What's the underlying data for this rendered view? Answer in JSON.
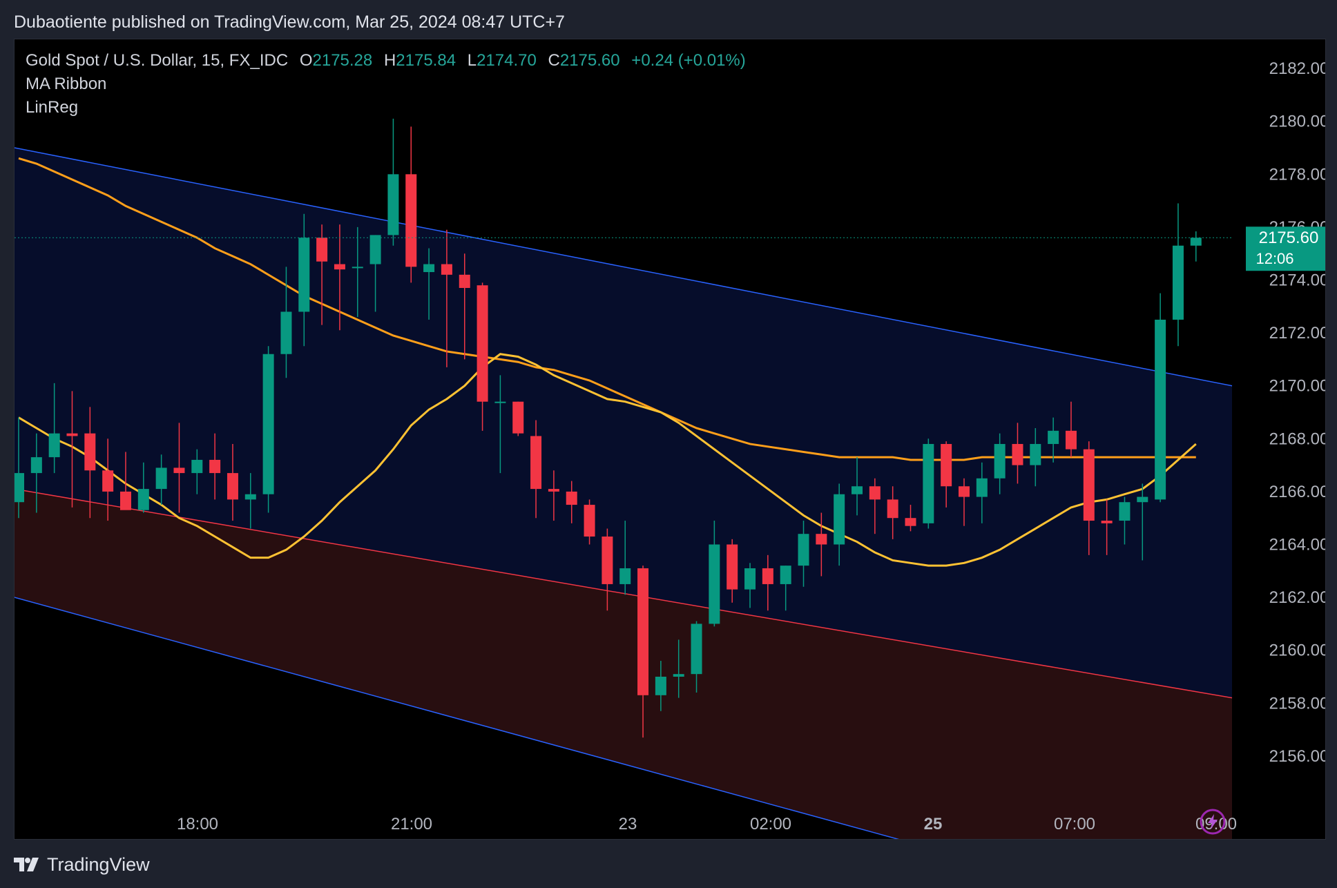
{
  "header": {
    "text": "Dubaotiente published on TradingView.com, Mar 25, 2024 08:47 UTC+7"
  },
  "legend": {
    "symbol": "Gold Spot / U.S. Dollar, 15, FX_IDC",
    "open_label": "O",
    "open": "2175.28",
    "high_label": "H",
    "high": "2175.84",
    "low_label": "L",
    "low": "2174.70",
    "close_label": "C",
    "close": "2175.60",
    "change": "+0.24 (+0.01%)",
    "indicators": [
      "MA Ribbon",
      "LinReg"
    ]
  },
  "price_tag": {
    "price": "2175.60",
    "countdown": "12:06"
  },
  "footer": {
    "brand": "TradingView"
  },
  "colors": {
    "up": "#089981",
    "down": "#f23645",
    "ma_fast": "#ffc233",
    "ma_slow": "#ff9f1a",
    "channel_line": "#2962ff",
    "mid_line": "#f23645"
  },
  "chart_data": {
    "type": "candlestick",
    "title": "Gold Spot / U.S. Dollar, 15, FX_IDC",
    "x_ticks": [
      "18:00",
      "21:00",
      "23",
      "02:00",
      "25",
      "07:00",
      "09:00"
    ],
    "y_ticks": [
      "2156.00",
      "2158.00",
      "2160.00",
      "2162.00",
      "2164.00",
      "2166.00",
      "2168.00",
      "2170.00",
      "2172.00",
      "2174.00",
      "2176.00",
      "2178.00",
      "2180.00",
      "2182.00"
    ],
    "ylim": [
      2154.3,
      2183.1
    ],
    "candles": [
      {
        "o": 2165.6,
        "h": 2168.8,
        "l": 2165.0,
        "c": 2166.7
      },
      {
        "o": 2166.7,
        "h": 2168.2,
        "l": 2165.2,
        "c": 2167.3
      },
      {
        "o": 2167.3,
        "h": 2170.1,
        "l": 2166.7,
        "c": 2168.2
      },
      {
        "o": 2168.2,
        "h": 2169.8,
        "l": 2165.4,
        "c": 2168.1
      },
      {
        "o": 2168.2,
        "h": 2169.2,
        "l": 2165.0,
        "c": 2166.8
      },
      {
        "o": 2166.8,
        "h": 2168.0,
        "l": 2164.9,
        "c": 2166.0
      },
      {
        "o": 2166.0,
        "h": 2167.5,
        "l": 2165.5,
        "c": 2165.3
      },
      {
        "o": 2165.3,
        "h": 2167.1,
        "l": 2165.2,
        "c": 2166.1
      },
      {
        "o": 2166.1,
        "h": 2167.4,
        "l": 2165.5,
        "c": 2166.9
      },
      {
        "o": 2166.9,
        "h": 2168.6,
        "l": 2165.2,
        "c": 2166.7
      },
      {
        "o": 2166.7,
        "h": 2167.6,
        "l": 2165.9,
        "c": 2167.2
      },
      {
        "o": 2167.2,
        "h": 2168.2,
        "l": 2165.7,
        "c": 2166.7
      },
      {
        "o": 2166.7,
        "h": 2167.8,
        "l": 2164.9,
        "c": 2165.7
      },
      {
        "o": 2165.7,
        "h": 2166.7,
        "l": 2164.6,
        "c": 2165.9
      },
      {
        "o": 2165.9,
        "h": 2171.5,
        "l": 2165.2,
        "c": 2171.2
      },
      {
        "o": 2171.2,
        "h": 2174.5,
        "l": 2170.3,
        "c": 2172.8
      },
      {
        "o": 2172.8,
        "h": 2176.5,
        "l": 2171.5,
        "c": 2175.6
      },
      {
        "o": 2175.6,
        "h": 2176.1,
        "l": 2172.3,
        "c": 2174.7
      },
      {
        "o": 2174.6,
        "h": 2176.1,
        "l": 2172.1,
        "c": 2174.4
      },
      {
        "o": 2174.5,
        "h": 2176.0,
        "l": 2172.6,
        "c": 2174.5
      },
      {
        "o": 2174.6,
        "h": 2175.7,
        "l": 2172.8,
        "c": 2175.7
      },
      {
        "o": 2175.7,
        "h": 2180.1,
        "l": 2175.3,
        "c": 2178.0
      },
      {
        "o": 2178.0,
        "h": 2179.8,
        "l": 2173.9,
        "c": 2174.5
      },
      {
        "o": 2174.3,
        "h": 2175.2,
        "l": 2172.5,
        "c": 2174.6
      },
      {
        "o": 2174.6,
        "h": 2175.9,
        "l": 2170.7,
        "c": 2174.2
      },
      {
        "o": 2174.2,
        "h": 2175.0,
        "l": 2171.0,
        "c": 2173.7
      },
      {
        "o": 2173.8,
        "h": 2173.9,
        "l": 2168.3,
        "c": 2169.4
      },
      {
        "o": 2169.4,
        "h": 2170.4,
        "l": 2166.7,
        "c": 2169.4
      },
      {
        "o": 2169.4,
        "h": 2169.4,
        "l": 2168.1,
        "c": 2168.2
      },
      {
        "o": 2168.1,
        "h": 2168.7,
        "l": 2165.0,
        "c": 2166.1
      },
      {
        "o": 2166.1,
        "h": 2166.8,
        "l": 2164.9,
        "c": 2166.0
      },
      {
        "o": 2166.0,
        "h": 2166.4,
        "l": 2164.8,
        "c": 2165.5
      },
      {
        "o": 2165.5,
        "h": 2165.7,
        "l": 2164.0,
        "c": 2164.3
      },
      {
        "o": 2164.3,
        "h": 2164.6,
        "l": 2161.5,
        "c": 2162.5
      },
      {
        "o": 2162.5,
        "h": 2164.9,
        "l": 2162.1,
        "c": 2163.1
      },
      {
        "o": 2163.1,
        "h": 2163.2,
        "l": 2156.7,
        "c": 2158.3
      },
      {
        "o": 2158.3,
        "h": 2159.6,
        "l": 2157.7,
        "c": 2159.0
      },
      {
        "o": 2159.0,
        "h": 2160.4,
        "l": 2158.2,
        "c": 2159.1
      },
      {
        "o": 2159.1,
        "h": 2161.1,
        "l": 2158.4,
        "c": 2161.0
      },
      {
        "o": 2161.0,
        "h": 2164.9,
        "l": 2160.9,
        "c": 2164.0
      },
      {
        "o": 2164.0,
        "h": 2164.2,
        "l": 2161.8,
        "c": 2162.3
      },
      {
        "o": 2162.3,
        "h": 2163.3,
        "l": 2161.6,
        "c": 2163.1
      },
      {
        "o": 2163.1,
        "h": 2163.6,
        "l": 2161.5,
        "c": 2162.5
      },
      {
        "o": 2162.5,
        "h": 2163.2,
        "l": 2161.5,
        "c": 2163.2
      },
      {
        "o": 2163.2,
        "h": 2164.9,
        "l": 2162.4,
        "c": 2164.4
      },
      {
        "o": 2164.4,
        "h": 2165.2,
        "l": 2162.8,
        "c": 2164.0
      },
      {
        "o": 2164.0,
        "h": 2166.3,
        "l": 2163.2,
        "c": 2165.9
      },
      {
        "o": 2165.9,
        "h": 2167.3,
        "l": 2165.1,
        "c": 2166.2
      },
      {
        "o": 2166.2,
        "h": 2166.5,
        "l": 2164.4,
        "c": 2165.7
      },
      {
        "o": 2165.7,
        "h": 2166.2,
        "l": 2164.2,
        "c": 2165.0
      },
      {
        "o": 2165.0,
        "h": 2165.5,
        "l": 2164.5,
        "c": 2164.7
      },
      {
        "o": 2164.8,
        "h": 2168.0,
        "l": 2164.6,
        "c": 2167.8
      },
      {
        "o": 2167.8,
        "h": 2167.9,
        "l": 2165.4,
        "c": 2166.2
      },
      {
        "o": 2166.2,
        "h": 2166.5,
        "l": 2164.7,
        "c": 2165.8
      },
      {
        "o": 2165.8,
        "h": 2167.1,
        "l": 2164.8,
        "c": 2166.5
      },
      {
        "o": 2166.5,
        "h": 2168.2,
        "l": 2165.9,
        "c": 2167.8
      },
      {
        "o": 2167.8,
        "h": 2168.6,
        "l": 2166.3,
        "c": 2167.0
      },
      {
        "o": 2167.0,
        "h": 2168.4,
        "l": 2166.2,
        "c": 2167.8
      },
      {
        "o": 2167.8,
        "h": 2168.8,
        "l": 2167.1,
        "c": 2168.3
      },
      {
        "o": 2168.3,
        "h": 2169.4,
        "l": 2167.3,
        "c": 2167.6
      },
      {
        "o": 2167.6,
        "h": 2167.9,
        "l": 2163.6,
        "c": 2164.9
      },
      {
        "o": 2164.9,
        "h": 2165.7,
        "l": 2163.6,
        "c": 2164.8
      },
      {
        "o": 2164.9,
        "h": 2165.8,
        "l": 2164.0,
        "c": 2165.6
      },
      {
        "o": 2165.6,
        "h": 2166.3,
        "l": 2163.4,
        "c": 2165.8
      },
      {
        "o": 2165.7,
        "h": 2173.5,
        "l": 2165.6,
        "c": 2172.5
      },
      {
        "o": 2172.5,
        "h": 2176.9,
        "l": 2171.5,
        "c": 2175.3
      },
      {
        "o": 2175.3,
        "h": 2175.84,
        "l": 2174.7,
        "c": 2175.6
      }
    ],
    "ma_fast": [
      2168.8,
      2168.4,
      2168.0,
      2167.7,
      2167.3,
      2166.8,
      2166.3,
      2165.9,
      2165.5,
      2165.0,
      2164.7,
      2164.3,
      2163.9,
      2163.5,
      2163.5,
      2163.8,
      2164.3,
      2164.9,
      2165.6,
      2166.2,
      2166.8,
      2167.6,
      2168.5,
      2169.1,
      2169.5,
      2170.0,
      2170.7,
      2171.2,
      2171.1,
      2170.8,
      2170.4,
      2170.1,
      2169.8,
      2169.5,
      2169.4,
      2169.2,
      2169.0,
      2168.6,
      2168.1,
      2167.6,
      2167.1,
      2166.6,
      2166.1,
      2165.6,
      2165.1,
      2164.7,
      2164.4,
      2164.1,
      2163.7,
      2163.4,
      2163.3,
      2163.2,
      2163.2,
      2163.3,
      2163.5,
      2163.8,
      2164.2,
      2164.6,
      2165.0,
      2165.4,
      2165.6,
      2165.7,
      2165.9,
      2166.1,
      2166.6,
      2167.2,
      2167.8
    ],
    "ma_slow": [
      2178.6,
      2178.4,
      2178.1,
      2177.8,
      2177.5,
      2177.2,
      2176.8,
      2176.5,
      2176.2,
      2175.9,
      2175.6,
      2175.2,
      2174.9,
      2174.6,
      2174.2,
      2173.8,
      2173.4,
      2173.1,
      2172.8,
      2172.5,
      2172.2,
      2171.9,
      2171.7,
      2171.5,
      2171.3,
      2171.2,
      2171.1,
      2171.0,
      2170.9,
      2170.7,
      2170.6,
      2170.4,
      2170.2,
      2169.9,
      2169.6,
      2169.3,
      2169.0,
      2168.7,
      2168.4,
      2168.2,
      2168.0,
      2167.8,
      2167.7,
      2167.6,
      2167.5,
      2167.4,
      2167.3,
      2167.3,
      2167.3,
      2167.3,
      2167.2,
      2167.2,
      2167.2,
      2167.2,
      2167.3,
      2167.3,
      2167.3,
      2167.3,
      2167.3,
      2167.3,
      2167.3,
      2167.3,
      2167.3,
      2167.3,
      2167.3,
      2167.3,
      2167.3
    ],
    "linreg": {
      "upper": [
        2179.0,
        2170.0
      ],
      "mid": [
        2166.1,
        2158.2
      ],
      "lower": [
        2162.0,
        2149.4
      ]
    }
  }
}
